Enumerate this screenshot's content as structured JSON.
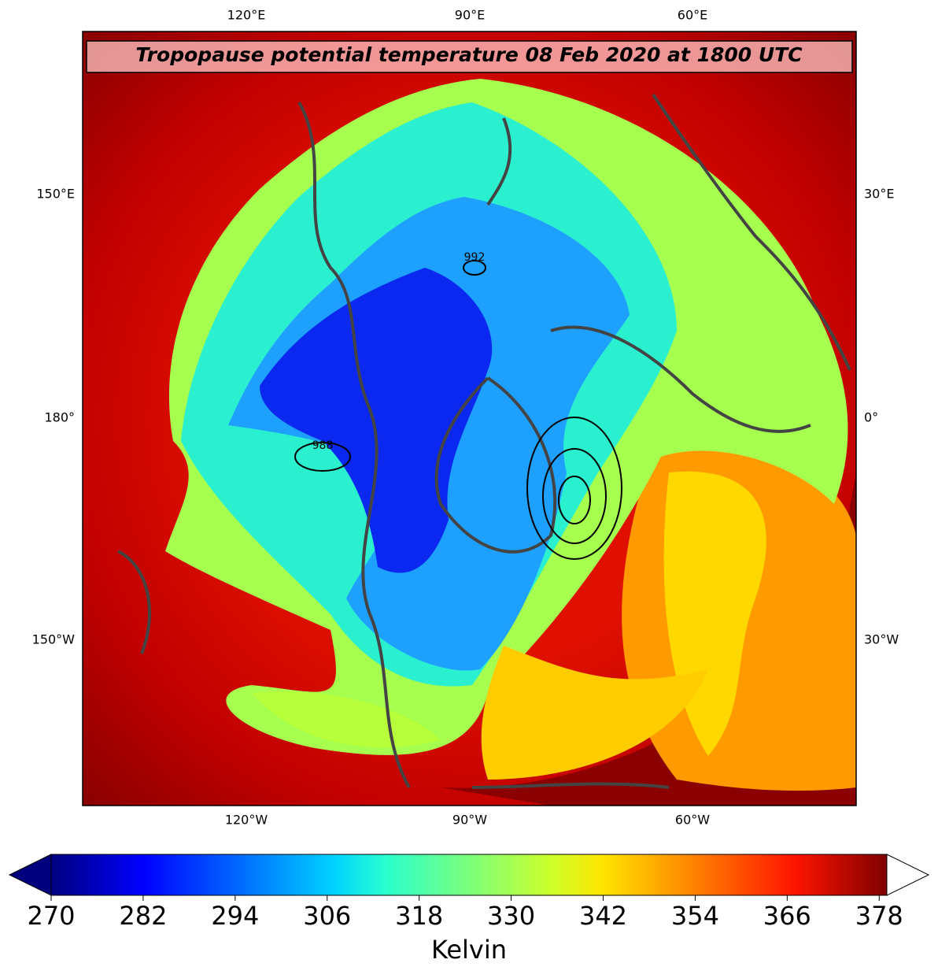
{
  "title": "Tropopause potential temperature 08 Feb 2020 at 1800 UTC",
  "map": {
    "top_labels": [
      "120°E",
      "90°E",
      "60°E"
    ],
    "bottom_labels": [
      "120°W",
      "90°W",
      "60°W"
    ],
    "left_labels": [
      "150°E",
      "180°",
      "150°W"
    ],
    "right_labels": [
      "30°E",
      "0°",
      "30°W"
    ],
    "contour_labels": [
      "992",
      "988"
    ]
  },
  "colorbar": {
    "label": "Kelvin",
    "lim": [
      270,
      379
    ],
    "ticks": [
      270,
      282,
      294,
      306,
      318,
      330,
      342,
      354,
      366,
      378
    ]
  }
}
